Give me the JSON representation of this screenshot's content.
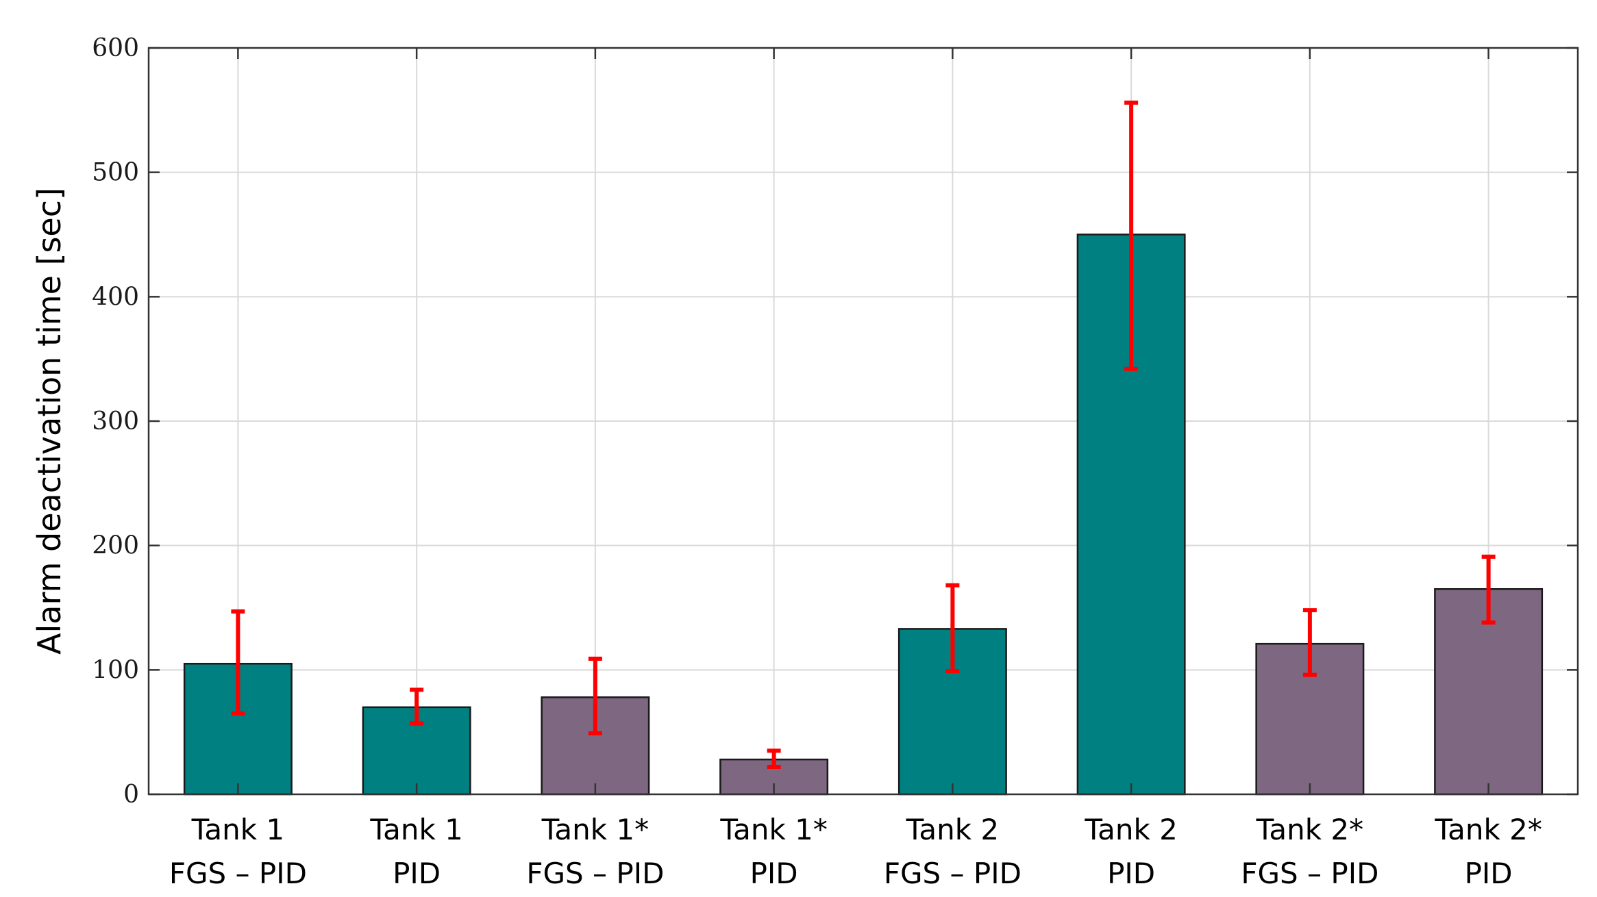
{
  "colors": {
    "fgs_pid": "#008080",
    "pid_only": "#7e6780",
    "error_bar": "#ff0000",
    "grid": "#d9d9d9",
    "axis": "#333333"
  },
  "chart_data": {
    "type": "bar",
    "title": "",
    "xlabel": "",
    "ylabel": "Alarm deactivation time [sec]",
    "ylim": [
      0,
      600
    ],
    "yticks": [
      "0",
      "100",
      "200",
      "300",
      "400",
      "500",
      "600"
    ],
    "grid": true,
    "categories": [
      {
        "line1": "Tank 1",
        "line2": "FGS – PID"
      },
      {
        "line1": "Tank 1",
        "line2": "PID"
      },
      {
        "line1": "Tank 1*",
        "line2": "FGS – PID"
      },
      {
        "line1": "Tank 1*",
        "line2": "PID"
      },
      {
        "line1": "Tank 2",
        "line2": "FGS – PID"
      },
      {
        "line1": "Tank 2",
        "line2": "PID"
      },
      {
        "line1": "Tank 2*",
        "line2": "FGS – PID"
      },
      {
        "line1": "Tank 2*",
        "line2": "PID"
      }
    ],
    "values": [
      105,
      70,
      78,
      28,
      133,
      450,
      121,
      165
    ],
    "error_low": [
      65,
      57,
      49,
      22,
      99,
      342,
      96,
      138
    ],
    "error_high": [
      147,
      84,
      109,
      35,
      168,
      556,
      148,
      191
    ],
    "bar_color_keys": [
      "fgs_pid",
      "fgs_pid",
      "pid_only",
      "pid_only",
      "fgs_pid",
      "fgs_pid",
      "pid_only",
      "pid_only"
    ]
  }
}
